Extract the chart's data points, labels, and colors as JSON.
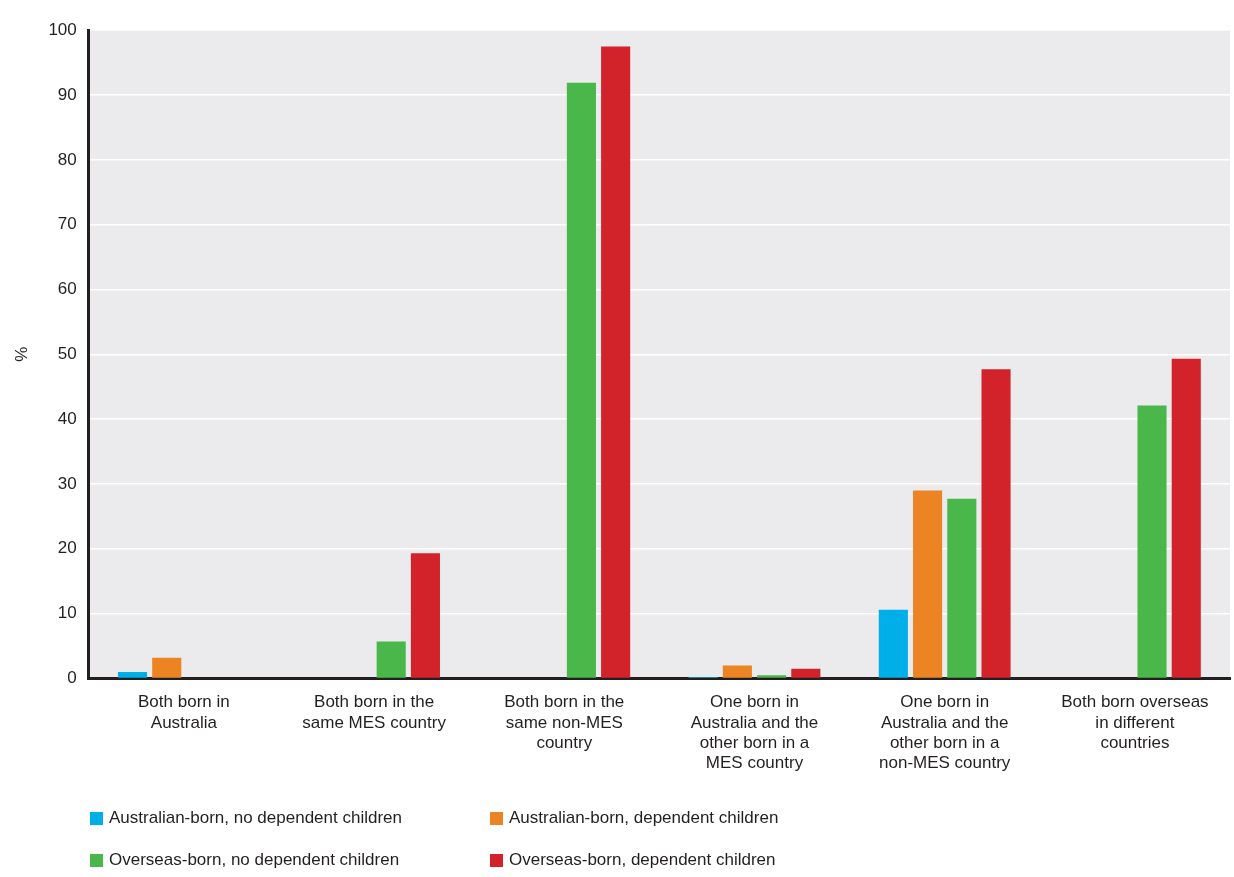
{
  "chart_data": {
    "type": "bar",
    "ylabel": "%",
    "categories": [
      "Both born in Australia",
      "Both born in the same MES country",
      "Both born in the same non-MES country",
      "One born in Australia and the other born in a MES country",
      "One born in Australia and the other born in a non-MES country",
      "Both born overseas in different countries"
    ],
    "series": [
      {
        "name": "Australian-born, no dependent children",
        "color": "#00aee8",
        "values": [
          1.0,
          null,
          null,
          0.2,
          10.6,
          null
        ]
      },
      {
        "name": "Australian-born, dependent children",
        "color": "#ec8424",
        "values": [
          3.2,
          null,
          null,
          2.0,
          29.0,
          null
        ]
      },
      {
        "name": "Overseas-born, no dependent children",
        "color": "#49b749",
        "values": [
          null,
          5.7,
          91.9,
          0.5,
          27.7,
          42.1
        ]
      },
      {
        "name": "Overseas-born, dependent children",
        "color": "#d2232a",
        "values": [
          null,
          19.3,
          97.5,
          1.5,
          47.7,
          49.3
        ]
      }
    ],
    "ylim": [
      0,
      100
    ],
    "yticks": [
      0,
      10,
      20,
      30,
      40,
      50,
      60,
      70,
      80,
      90,
      100
    ],
    "grid": "y",
    "legend": "bottom left"
  }
}
